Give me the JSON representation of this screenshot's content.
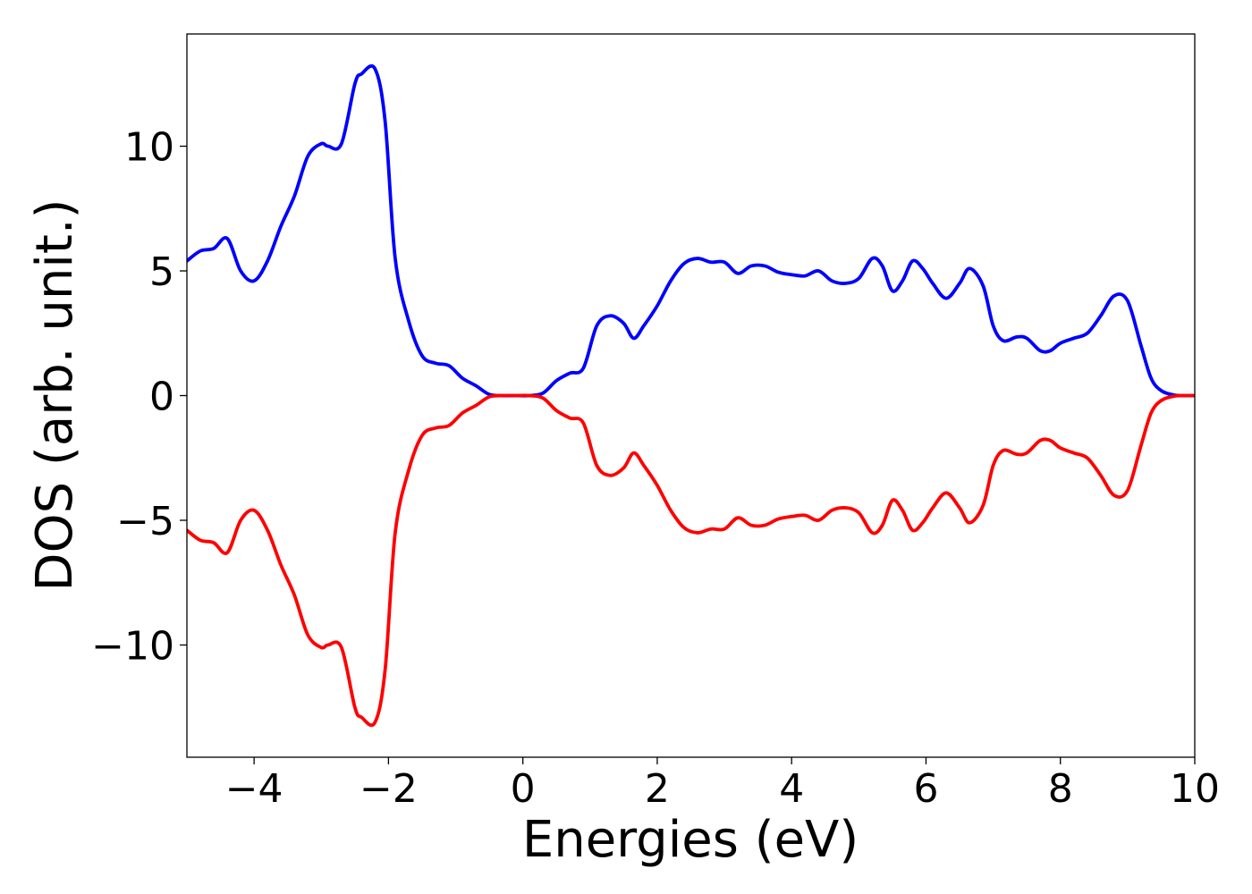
{
  "chart_data": {
    "type": "line",
    "title": "",
    "xlabel": "Energies (eV)",
    "ylabel": "DOS (arb. unit.)",
    "xlim": [
      -5,
      10
    ],
    "ylim": [
      -14.5,
      14.5
    ],
    "grid": false,
    "legend": "none",
    "xticks": [
      -4,
      -2,
      0,
      2,
      4,
      6,
      8,
      10
    ],
    "xtick_labels": [
      "−4",
      "−2",
      "0",
      "2",
      "4",
      "6",
      "8",
      "10"
    ],
    "yticks": [
      -10,
      -5,
      0,
      5,
      10
    ],
    "ytick_labels": [
      "−10",
      "−5",
      "0",
      "5",
      "10"
    ],
    "x": [
      -5.0,
      -4.8,
      -4.6,
      -4.4,
      -4.2,
      -4.0,
      -3.8,
      -3.6,
      -3.4,
      -3.2,
      -3.0,
      -2.9,
      -2.7,
      -2.5,
      -2.4,
      -2.2,
      -2.05,
      -1.9,
      -1.7,
      -1.5,
      -1.3,
      -1.1,
      -0.9,
      -0.7,
      -0.5,
      -0.3,
      -0.1,
      0.1,
      0.3,
      0.5,
      0.7,
      0.9,
      1.1,
      1.3,
      1.5,
      1.65,
      1.8,
      2.0,
      2.2,
      2.4,
      2.6,
      2.8,
      3.0,
      3.2,
      3.4,
      3.6,
      3.8,
      4.0,
      4.2,
      4.4,
      4.6,
      4.8,
      5.0,
      5.2,
      5.35,
      5.5,
      5.65,
      5.8,
      5.95,
      6.1,
      6.3,
      6.5,
      6.65,
      6.85,
      7.0,
      7.15,
      7.35,
      7.5,
      7.7,
      7.85,
      8.0,
      8.2,
      8.4,
      8.6,
      8.8,
      9.0,
      9.2,
      9.35,
      9.5,
      9.7,
      9.9,
      10.0
    ],
    "series": [
      {
        "color": "#0000ff",
        "values": [
          5.4,
          5.8,
          5.9,
          6.3,
          5.0,
          4.6,
          5.4,
          6.8,
          8.0,
          9.6,
          10.1,
          10.0,
          10.1,
          12.5,
          12.9,
          13.1,
          11.0,
          5.5,
          3.0,
          1.6,
          1.3,
          1.2,
          0.7,
          0.4,
          0.05,
          0.0,
          0.0,
          0.0,
          0.1,
          0.6,
          0.9,
          1.1,
          2.8,
          3.2,
          2.9,
          2.3,
          2.8,
          3.6,
          4.6,
          5.3,
          5.5,
          5.35,
          5.35,
          4.9,
          5.2,
          5.2,
          4.95,
          4.85,
          4.8,
          5.0,
          4.6,
          4.5,
          4.7,
          5.5,
          5.2,
          4.2,
          4.6,
          5.4,
          5.1,
          4.5,
          3.9,
          4.5,
          5.1,
          4.4,
          2.8,
          2.2,
          2.35,
          2.3,
          1.8,
          1.8,
          2.1,
          2.3,
          2.5,
          3.2,
          4.0,
          3.8,
          2.0,
          0.7,
          0.2,
          0.02,
          0.0,
          0.0
        ]
      },
      {
        "color": "#ff0000",
        "values": [
          -5.4,
          -5.8,
          -5.9,
          -6.3,
          -5.0,
          -4.6,
          -5.4,
          -6.8,
          -8.0,
          -9.6,
          -10.1,
          -10.0,
          -10.1,
          -12.5,
          -12.9,
          -13.1,
          -11.0,
          -5.5,
          -3.0,
          -1.6,
          -1.3,
          -1.2,
          -0.7,
          -0.4,
          -0.05,
          0.0,
          0.0,
          0.0,
          -0.1,
          -0.6,
          -0.9,
          -1.1,
          -2.8,
          -3.2,
          -2.9,
          -2.3,
          -2.8,
          -3.6,
          -4.6,
          -5.3,
          -5.5,
          -5.35,
          -5.35,
          -4.9,
          -5.2,
          -5.2,
          -4.95,
          -4.85,
          -4.8,
          -5.0,
          -4.6,
          -4.5,
          -4.7,
          -5.5,
          -5.2,
          -4.2,
          -4.6,
          -5.4,
          -5.1,
          -4.5,
          -3.9,
          -4.5,
          -5.1,
          -4.4,
          -2.8,
          -2.2,
          -2.35,
          -2.3,
          -1.8,
          -1.8,
          -2.1,
          -2.3,
          -2.5,
          -3.2,
          -4.0,
          -3.8,
          -2.0,
          -0.7,
          -0.2,
          -0.02,
          0.0,
          0.0
        ]
      }
    ]
  }
}
